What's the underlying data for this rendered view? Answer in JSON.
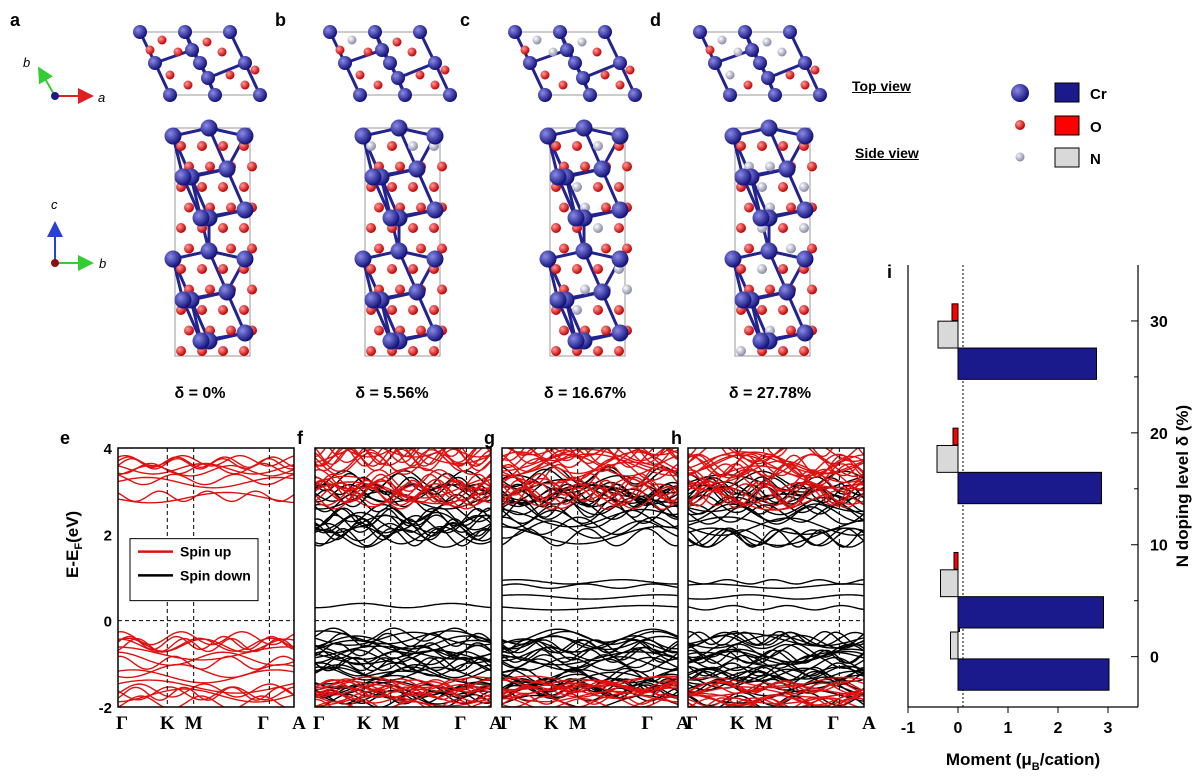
{
  "panel_labels": [
    "a",
    "b",
    "c",
    "d",
    "e",
    "f",
    "g",
    "h",
    "i"
  ],
  "axes_indicator": {
    "top": {
      "vertical": "b",
      "horizontal": "a",
      "vertical_color": "#33cc33",
      "horizontal_color": "#e02020"
    },
    "side": {
      "vertical": "c",
      "horizontal": "b",
      "vertical_color": "#2a3fd6",
      "horizontal_color": "#33cc33"
    }
  },
  "view_labels": {
    "top": "Top view",
    "side": "Side view"
  },
  "legend": [
    {
      "label": "Cr",
      "color": "#1a1a8c"
    },
    {
      "label": "O",
      "color": "#ff0000"
    },
    {
      "label": "N",
      "color": "#d9d9d9"
    }
  ],
  "structures": [
    "δ = 0%",
    "δ = 5.56%",
    "δ = 16.67%",
    "δ = 27.78%"
  ],
  "band_plots": {
    "ylabel": "E-E",
    "ylabel_sub": "F",
    "ylabel_unit": "(eV)",
    "yticks": [
      "-2",
      "0",
      "2",
      "4"
    ],
    "kpath": [
      "Γ",
      "K",
      "M",
      "Γ",
      "A"
    ],
    "spin_legend": [
      "Spin up",
      "Spin down"
    ],
    "spin_colors": {
      "up": "#e01010",
      "down": "#000000"
    }
  },
  "chart_data": {
    "type": "bar",
    "orientation": "horizontal",
    "xlabel": "Moment (μ",
    "xlabel_sub": "B",
    "xlabel_tail": "/cation)",
    "ylabel": "N doping level δ (%)",
    "xticks": [
      "-1",
      "0",
      "1",
      "2",
      "3"
    ],
    "yticks": [
      "0",
      "10",
      "20",
      "30"
    ],
    "xlim": [
      -1,
      3.6
    ],
    "ylim": [
      -4.5,
      35
    ],
    "reference_line_x": 0.1,
    "series": [
      {
        "name": "Cr",
        "color": "#1a1a8c",
        "values": [
          3.02,
          2.91,
          2.87,
          2.77
        ]
      },
      {
        "name": "O",
        "color": "#ff0000",
        "values": [
          0.03,
          -0.08,
          -0.1,
          -0.12
        ]
      },
      {
        "name": "N",
        "color": "#d9d9d9",
        "values": [
          -0.15,
          -0.35,
          -0.42,
          -0.4
        ]
      }
    ],
    "categories_y": [
      0,
      5.56,
      16.67,
      27.78
    ]
  }
}
